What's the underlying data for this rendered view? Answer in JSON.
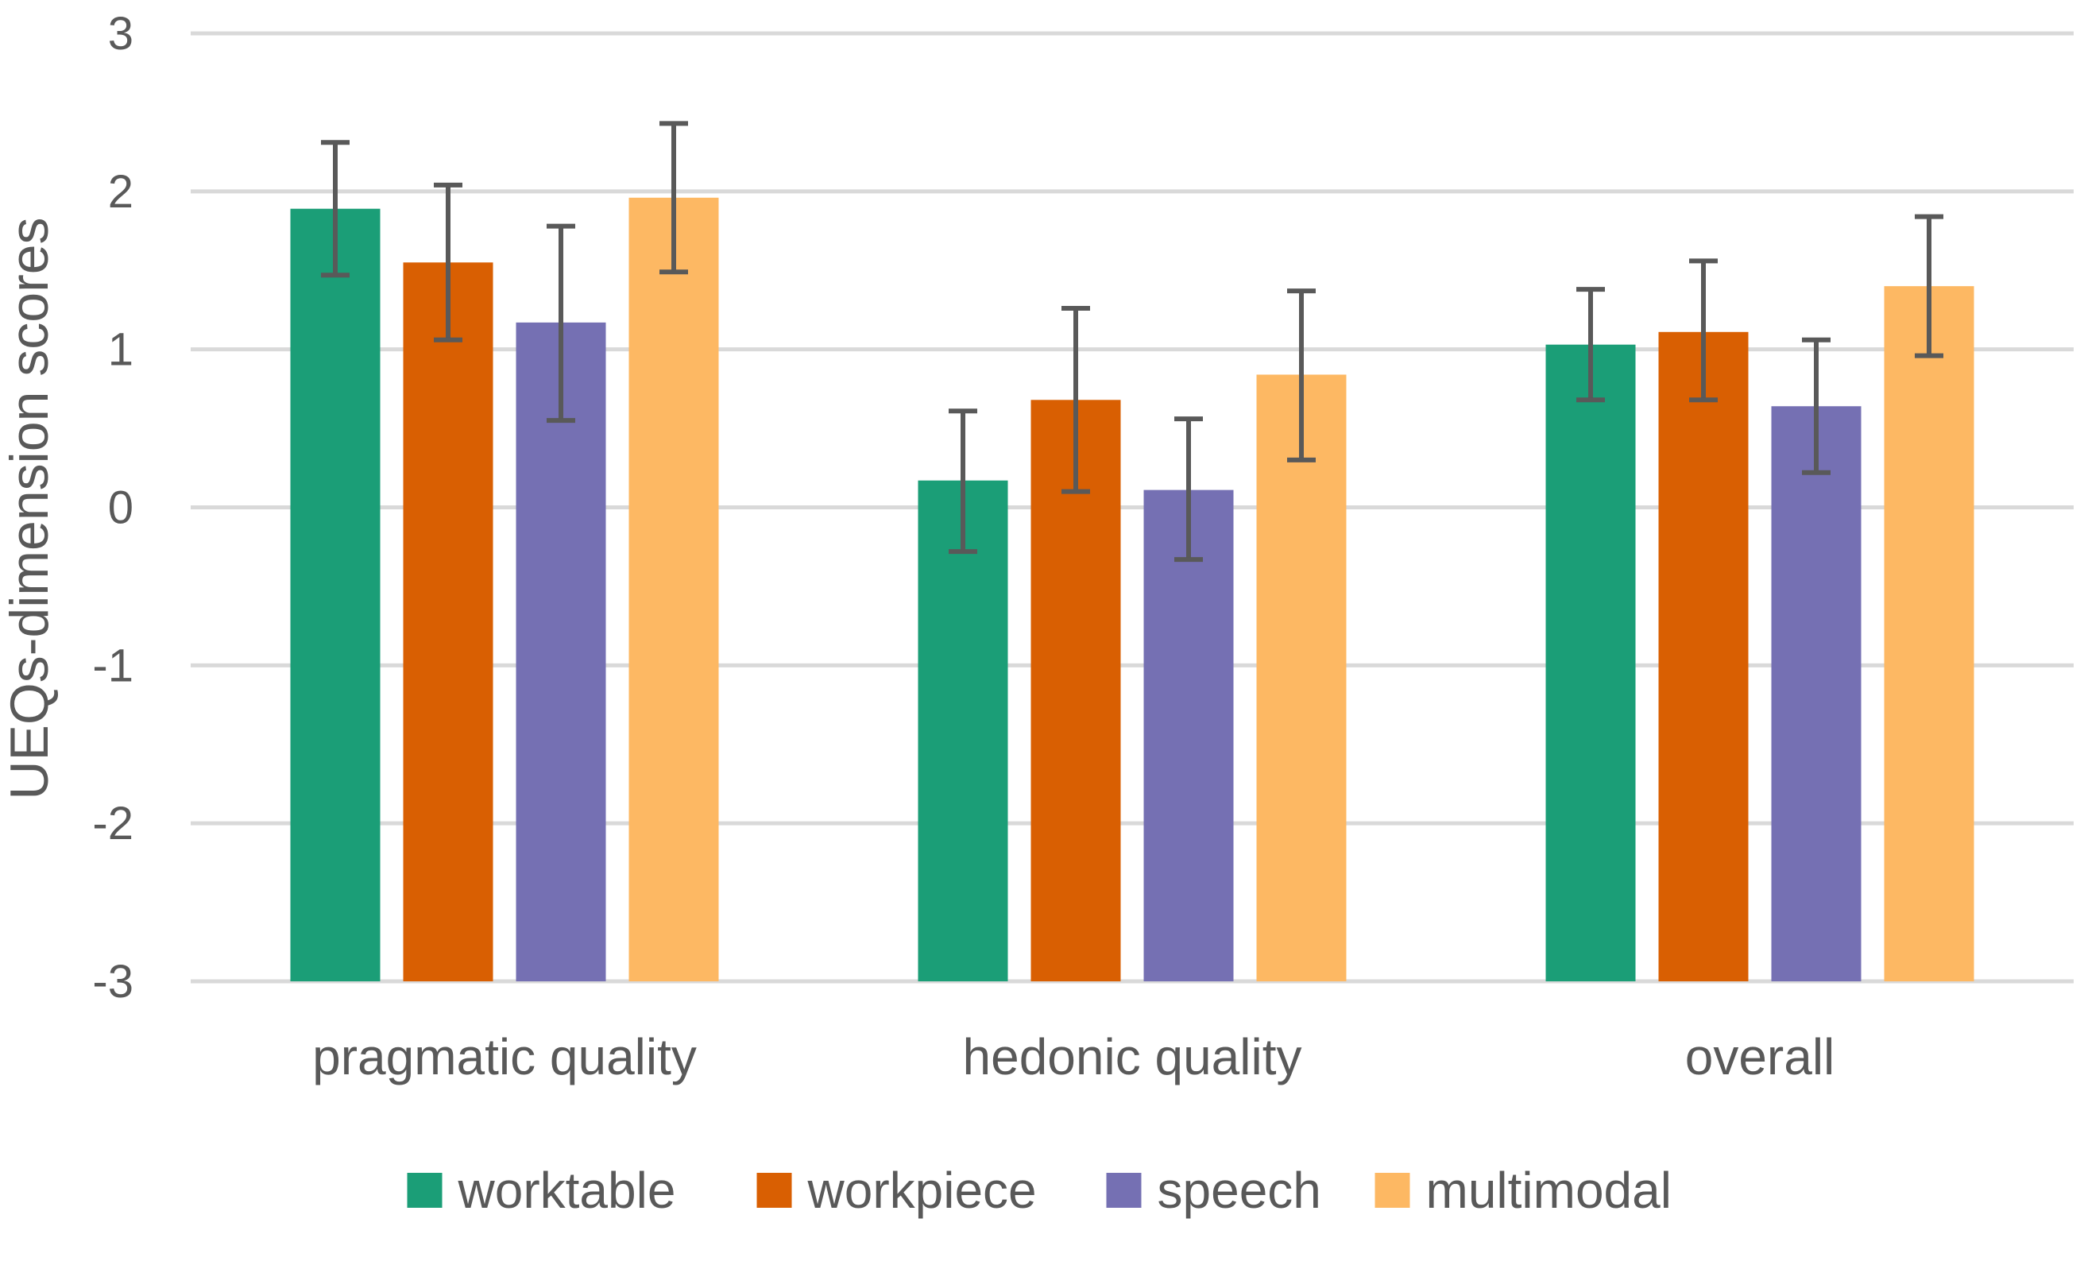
{
  "chart_data": {
    "type": "bar",
    "ylabel": "UEQs-dimension scores",
    "xlabel": "",
    "ylim": [
      -3,
      3
    ],
    "yticks": [
      3,
      2,
      1,
      0,
      -1,
      -2,
      -3
    ],
    "ytick_labels": [
      "3",
      "2",
      "1",
      "0",
      "-1",
      "-2",
      "-3"
    ],
    "grid": true,
    "legend_position": "bottom",
    "error_bars": true,
    "categories": [
      "pragmatic quality",
      "hedonic quality",
      "overall"
    ],
    "series": [
      {
        "name": "worktable",
        "color": "#1b9e77",
        "values": [
          1.89,
          0.17,
          1.03
        ],
        "error_low": [
          1.47,
          -0.28,
          0.68
        ],
        "error_high": [
          2.31,
          0.61,
          1.38
        ]
      },
      {
        "name": "workpiece",
        "color": "#d95f02",
        "values": [
          1.55,
          0.68,
          1.11
        ],
        "error_low": [
          1.06,
          0.1,
          0.68
        ],
        "error_high": [
          2.04,
          1.26,
          1.56
        ]
      },
      {
        "name": "speech",
        "color": "#7570b3",
        "values": [
          1.17,
          0.11,
          0.64
        ],
        "error_low": [
          0.55,
          -0.33,
          0.22
        ],
        "error_high": [
          1.78,
          0.56,
          1.06
        ]
      },
      {
        "name": "multimodal",
        "color": "#fdb863",
        "values": [
          1.96,
          0.84,
          1.4
        ],
        "error_low": [
          1.49,
          0.3,
          0.96
        ],
        "error_high": [
          2.43,
          1.37,
          1.84
        ]
      }
    ]
  }
}
